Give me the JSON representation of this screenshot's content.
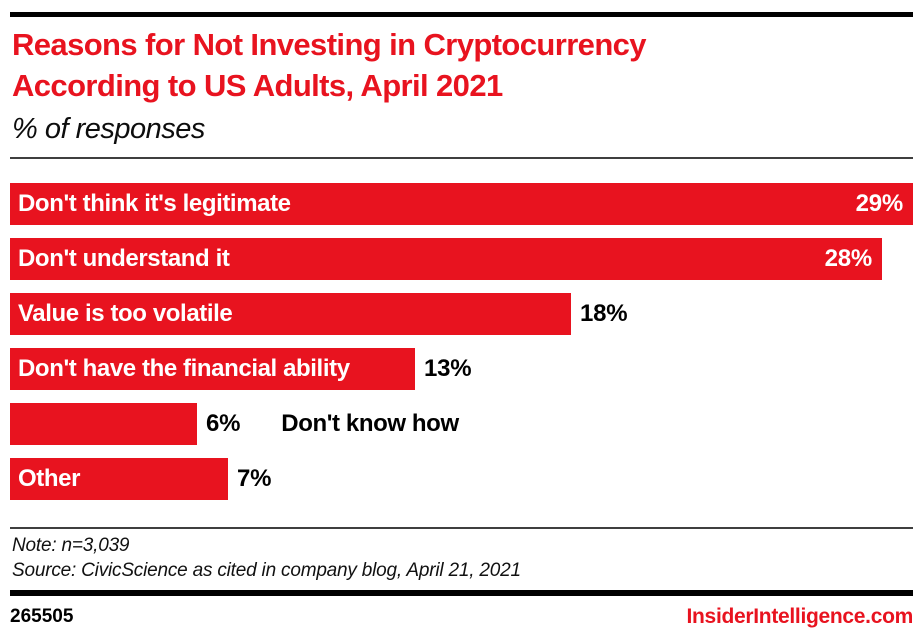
{
  "colors": {
    "accent_red": "#e8131f",
    "bar_red": "#e8131f",
    "text_black": "#000000",
    "inside_label_white": "#ffffff",
    "rule_gray": "#3f3f3f"
  },
  "header": {
    "title_line1": "Reasons for Not Investing in Cryptocurrency",
    "title_line2": "According to US Adults, April 2021",
    "subtitle": "% of responses"
  },
  "chart_data": {
    "type": "bar",
    "orientation": "horizontal",
    "title": "Reasons for Not Investing in Cryptocurrency According to US Adults, April 2021",
    "unit": "% of responses",
    "categories": [
      "Don't think it's legitimate",
      "Don't understand it",
      "Value is too volatile",
      "Don't have the financial ability",
      "Don't know how",
      "Other"
    ],
    "values": [
      29,
      28,
      18,
      13,
      6,
      7
    ],
    "value_labels": [
      "29%",
      "28%",
      "18%",
      "13%",
      "6%",
      "7%"
    ],
    "xlim": [
      0,
      29.5
    ],
    "bar_color": "#e8131f",
    "grid": false,
    "legend": false,
    "category_label_placement": [
      "inside",
      "inside",
      "inside",
      "inside",
      "outside-after-value",
      "inside"
    ],
    "value_label_placement": [
      "inside",
      "inside",
      "outside",
      "outside",
      "outside",
      "outside"
    ]
  },
  "footer": {
    "note": "Note: n=3,039",
    "source": "Source: CivicScience as cited in company blog, April 21, 2021",
    "chart_id": "265505",
    "brand": "InsiderIntelligence.com"
  }
}
